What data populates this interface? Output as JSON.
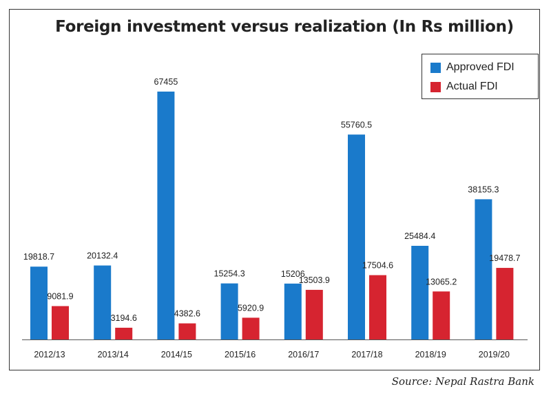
{
  "chart_data": {
    "type": "bar",
    "title": "Foreign investment versus realization (In Rs million)",
    "xlabel": "",
    "ylabel": "",
    "categories": [
      "2012/13",
      "2013/14",
      "2014/15",
      "2015/16",
      "2016/17",
      "2017/18",
      "2018/19",
      "2019/20"
    ],
    "series": [
      {
        "name": "Approved FDI",
        "color": "#1a7acb",
        "values": [
          19818.7,
          20132.4,
          67455,
          15254.3,
          15206,
          55760.5,
          25484.4,
          38155.3
        ],
        "labels": [
          "19818.7",
          "20132.4",
          "67455",
          "15254.3",
          "15206",
          "55760.5",
          "25484.4",
          "38155.3"
        ]
      },
      {
        "name": "Actual FDI",
        "color": "#d62430",
        "values": [
          9081.9,
          3194.6,
          4382.6,
          5920.9,
          13503.9,
          17504.6,
          13065.2,
          19478.7
        ],
        "labels": [
          "9081.9",
          "3194.6",
          "4382.6",
          "5920.9",
          "13503.9",
          "17504.6",
          "13065.2",
          "19478.7"
        ]
      }
    ],
    "ylim": [
      0,
      67455
    ],
    "grid": false,
    "legend_position": "top-right"
  },
  "source": "Source: Nepal Rastra Bank"
}
